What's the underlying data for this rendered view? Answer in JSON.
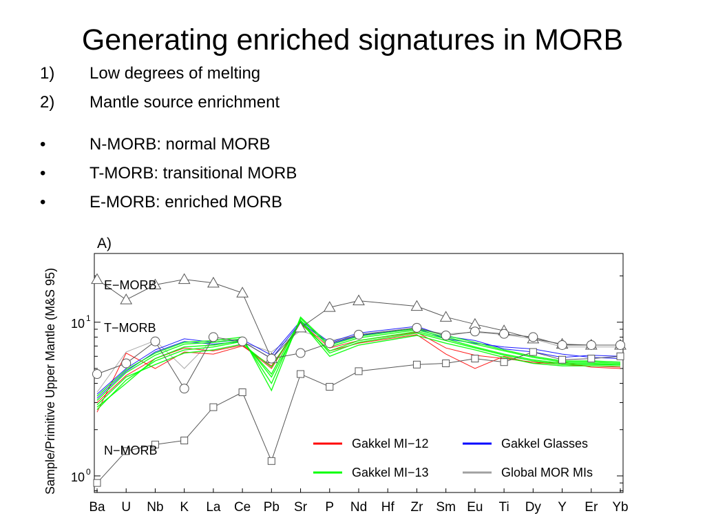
{
  "slide": {
    "title": "Generating enriched signatures in MORB",
    "numbered": [
      {
        "marker": "1)",
        "text": "Low degrees of melting"
      },
      {
        "marker": "2)",
        "text": "Mantle source enrichment"
      }
    ],
    "bullets": [
      {
        "marker": "•",
        "text": "N-MORB: normal MORB"
      },
      {
        "marker": "•",
        "text": "T-MORB: transitional MORB"
      },
      {
        "marker": "•",
        "text": "E-MORB: enriched MORB"
      }
    ]
  },
  "chart_data": {
    "type": "line",
    "panel_label": "A)",
    "ylabel": "Sample/Primitive Upper Mantle (M&S 95)",
    "yscale": "log",
    "ylim": [
      0.78,
      28
    ],
    "yticks": [
      {
        "value": 1,
        "label": "10",
        "exp": "0"
      },
      {
        "value": 10,
        "label": "10",
        "exp": "1"
      }
    ],
    "categories": [
      "Ba",
      "U",
      "Nb",
      "K",
      "La",
      "Ce",
      "Pb",
      "Sr",
      "P",
      "Nd",
      "Hf",
      "Zr",
      "Sm",
      "Eu",
      "Ti",
      "Dy",
      "Y",
      "Er",
      "Yb"
    ],
    "grid": false,
    "legend_position": "bottom-right",
    "legend": [
      {
        "name": "Gakkel MI−12",
        "color": "#ff0000"
      },
      {
        "name": "Gakkel Glasses",
        "color": "#0000ff"
      },
      {
        "name": "Gakkel MI−13",
        "color": "#00ff00"
      },
      {
        "name": "Global MOR MIs",
        "color": "#a0a0a0"
      }
    ],
    "references": [
      {
        "name": "E−MORB",
        "marker": "triangle",
        "values": [
          19,
          14,
          17.5,
          19,
          18,
          15.5,
          5.8,
          9.2,
          12.5,
          13.8,
          null,
          12.7,
          10.8,
          9.7,
          8.8,
          7.8,
          7.2,
          7.1,
          7.1
        ]
      },
      {
        "name": "T−MORB",
        "marker": "circle",
        "values": [
          4.6,
          5.4,
          7.5,
          3.7,
          8.0,
          7.5,
          5.8,
          6.3,
          7.3,
          8.3,
          null,
          9.2,
          8.2,
          8.7,
          8.4,
          8.0,
          7.1,
          7.1,
          7.1
        ]
      },
      {
        "name": "N−MORB",
        "marker": "square",
        "values": [
          0.9,
          1.45,
          1.6,
          1.7,
          2.8,
          3.5,
          1.25,
          4.6,
          3.8,
          4.8,
          null,
          5.3,
          5.4,
          5.8,
          5.5,
          6.4,
          5.7,
          5.8,
          6.0
        ]
      }
    ],
    "series": [
      {
        "group": "Gakkel MI−13",
        "color": "#00ff00",
        "values": [
          2.7,
          4.2,
          5.6,
          6.6,
          6.9,
          7.5,
          4.6,
          10.3,
          6.3,
          7.4,
          null,
          8.5,
          7.6,
          6.8,
          6.1,
          5.6,
          5.3,
          5.3,
          5.3
        ]
      },
      {
        "group": "Gakkel MI−13",
        "color": "#00ff00",
        "values": [
          3.1,
          4.7,
          6.1,
          7.2,
          7.4,
          7.8,
          4.0,
          10.6,
          6.9,
          7.9,
          null,
          8.9,
          8.0,
          7.2,
          6.5,
          5.9,
          5.5,
          5.5,
          5.4
        ]
      },
      {
        "group": "Gakkel MI−13",
        "color": "#00ff00",
        "values": [
          2.9,
          4.4,
          5.3,
          6.3,
          6.6,
          7.2,
          5.1,
          10.1,
          6.0,
          7.1,
          null,
          8.2,
          7.3,
          6.6,
          5.9,
          5.4,
          5.2,
          5.2,
          5.2
        ]
      },
      {
        "group": "Gakkel MI−13",
        "color": "#00ff00",
        "values": [
          3.3,
          4.9,
          6.3,
          7.4,
          7.6,
          8.0,
          3.6,
          10.8,
          7.1,
          8.1,
          null,
          9.1,
          8.2,
          7.4,
          6.6,
          6.0,
          5.6,
          5.6,
          5.5
        ]
      },
      {
        "group": "Gakkel MI−13",
        "color": "#00ff00",
        "values": [
          2.8,
          4.0,
          5.8,
          6.9,
          7.1,
          7.6,
          4.4,
          9.9,
          6.5,
          7.6,
          null,
          8.7,
          7.8,
          6.9,
          6.2,
          5.7,
          5.4,
          5.4,
          5.3
        ]
      },
      {
        "group": "Gakkel MI−12",
        "color": "#ff0000",
        "values": [
          2.6,
          6.3,
          5.0,
          6.4,
          6.2,
          7.0,
          5.2,
          9.8,
          6.5,
          7.3,
          null,
          8.3,
          6.2,
          5.0,
          6.0,
          5.4,
          5.5,
          5.1,
          5.0
        ]
      },
      {
        "group": "Gakkel MI−12",
        "color": "#ff0000",
        "values": [
          3.0,
          4.5,
          5.8,
          6.8,
          6.5,
          7.1,
          5.0,
          10.0,
          6.8,
          7.6,
          null,
          8.6,
          6.8,
          6.1,
          5.8,
          5.5,
          5.3,
          5.2,
          5.1
        ]
      },
      {
        "group": "Gakkel Glasses",
        "color": "#0000ff",
        "values": [
          3.4,
          5.0,
          6.6,
          7.8,
          7.4,
          7.7,
          6.1,
          10.2,
          7.4,
          8.5,
          null,
          9.4,
          8.1,
          7.6,
          6.7,
          6.4,
          5.9,
          6.1,
          6.0
        ]
      },
      {
        "group": "Gakkel Glasses",
        "color": "#0000ff",
        "values": [
          3.2,
          4.8,
          6.4,
          7.5,
          7.2,
          7.5,
          5.8,
          10.0,
          7.2,
          8.2,
          null,
          9.1,
          7.8,
          7.3,
          6.9,
          6.7,
          6.2,
          5.9,
          5.8
        ]
      },
      {
        "group": "Global MOR MIs",
        "color": "#a0a0a0",
        "values": [
          3.5,
          6.4,
          7.6,
          5.0,
          7.8,
          7.4,
          6.4,
          8.8,
          7.6,
          8.2,
          null,
          9.0,
          8.4,
          8.6,
          8.3,
          7.8,
          6.9,
          6.9,
          6.9
        ]
      }
    ]
  }
}
